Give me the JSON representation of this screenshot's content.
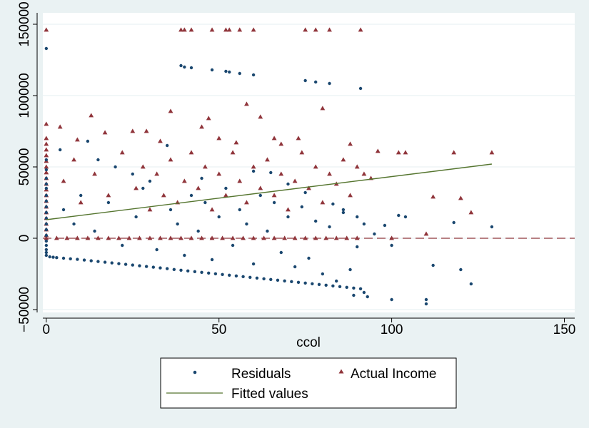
{
  "colors": {
    "background": "#eaf2f3",
    "plot_bg": "#ffffff",
    "grid": "#eaf2f3",
    "residuals": "#1a476f",
    "actual": "#90353b",
    "fitted": "#55752f",
    "refline": "#90353b"
  },
  "chart_data": {
    "type": "scatter",
    "title": "",
    "xlabel": "ccol",
    "ylabel": "",
    "xlim": [
      -1,
      153
    ],
    "ylim": [
      -52000,
      158000
    ],
    "xticks": [
      0,
      50,
      100,
      150
    ],
    "yticks": [
      -50000,
      0,
      50000,
      100000,
      150000
    ],
    "xtick_labels": [
      "0",
      "50",
      "100",
      "150"
    ],
    "ytick_labels": [
      "−50000",
      "0",
      "50000",
      "100000",
      "150000"
    ],
    "grid": true,
    "reference_line": {
      "y": 0,
      "style": "dashed"
    },
    "legend_position": "bottom",
    "series": [
      {
        "name": "Residuals",
        "type": "scatter",
        "marker": "circle",
        "points": [
          [
            0,
            133000
          ],
          [
            0,
            55000
          ],
          [
            0,
            48000
          ],
          [
            0,
            42000
          ],
          [
            0,
            38000
          ],
          [
            0,
            35000
          ],
          [
            0,
            30000
          ],
          [
            0,
            26000
          ],
          [
            0,
            22000
          ],
          [
            0,
            18000
          ],
          [
            0,
            14000
          ],
          [
            0,
            10000
          ],
          [
            0,
            6000
          ],
          [
            0,
            2000
          ],
          [
            0,
            -2000
          ],
          [
            0,
            -5000
          ],
          [
            0,
            -8000
          ],
          [
            0,
            -10000
          ],
          [
            0,
            -12000
          ],
          [
            1,
            -13000
          ],
          [
            2,
            -13300
          ],
          [
            3,
            -13600
          ],
          [
            5,
            -14000
          ],
          [
            7,
            -14400
          ],
          [
            9,
            -14800
          ],
          [
            11,
            -15300
          ],
          [
            13,
            -15800
          ],
          [
            15,
            -16300
          ],
          [
            17,
            -16800
          ],
          [
            19,
            -17300
          ],
          [
            21,
            -17800
          ],
          [
            23,
            -18300
          ],
          [
            25,
            -18800
          ],
          [
            27,
            -19300
          ],
          [
            29,
            -19800
          ],
          [
            31,
            -20300
          ],
          [
            33,
            -20800
          ],
          [
            35,
            -21300
          ],
          [
            37,
            -21900
          ],
          [
            39,
            -22400
          ],
          [
            41,
            -22900
          ],
          [
            43,
            -23400
          ],
          [
            45,
            -23900
          ],
          [
            47,
            -24400
          ],
          [
            49,
            -24900
          ],
          [
            51,
            -25400
          ],
          [
            53,
            -25900
          ],
          [
            55,
            -26400
          ],
          [
            57,
            -26900
          ],
          [
            59,
            -27400
          ],
          [
            61,
            -27900
          ],
          [
            63,
            -28400
          ],
          [
            65,
            -28900
          ],
          [
            67,
            -29400
          ],
          [
            69,
            -29900
          ],
          [
            71,
            -30400
          ],
          [
            73,
            -30900
          ],
          [
            75,
            -31400
          ],
          [
            77,
            -31900
          ],
          [
            79,
            -32400
          ],
          [
            81,
            -32900
          ],
          [
            83,
            -33400
          ],
          [
            85,
            -33900
          ],
          [
            87,
            -34400
          ],
          [
            89,
            -34900
          ],
          [
            91,
            -35400
          ],
          [
            93,
            -41000
          ],
          [
            100,
            -43000
          ],
          [
            110,
            -43000
          ],
          [
            110,
            -46000
          ],
          [
            39,
            121000
          ],
          [
            40,
            120000
          ],
          [
            42,
            119500
          ],
          [
            48,
            118000
          ],
          [
            52,
            117000
          ],
          [
            53,
            116500
          ],
          [
            56,
            115500
          ],
          [
            60,
            114500
          ],
          [
            75,
            110500
          ],
          [
            78,
            109500
          ],
          [
            82,
            108500
          ],
          [
            91,
            105000
          ],
          [
            12,
            68000
          ],
          [
            35,
            65000
          ],
          [
            4,
            62000
          ],
          [
            15,
            55000
          ],
          [
            20,
            50000
          ],
          [
            25,
            45000
          ],
          [
            30,
            40000
          ],
          [
            45,
            42000
          ],
          [
            60,
            47000
          ],
          [
            65,
            46000
          ],
          [
            70,
            38000
          ],
          [
            75,
            32000
          ],
          [
            83,
            24000
          ],
          [
            86,
            20000
          ],
          [
            90,
            15000
          ],
          [
            92,
            10000
          ],
          [
            95,
            3000
          ],
          [
            98,
            9000
          ],
          [
            100,
            -5000
          ],
          [
            102,
            16000
          ],
          [
            104,
            15000
          ],
          [
            112,
            -19000
          ],
          [
            118,
            11000
          ],
          [
            120,
            -22000
          ],
          [
            123,
            -32000
          ],
          [
            129,
            8000
          ],
          [
            5,
            20000
          ],
          [
            8,
            10000
          ],
          [
            10,
            30000
          ],
          [
            14,
            5000
          ],
          [
            18,
            25000
          ],
          [
            22,
            -5000
          ],
          [
            26,
            15000
          ],
          [
            28,
            35000
          ],
          [
            32,
            -8000
          ],
          [
            36,
            20000
          ],
          [
            38,
            10000
          ],
          [
            40,
            -12000
          ],
          [
            42,
            30000
          ],
          [
            44,
            5000
          ],
          [
            46,
            25000
          ],
          [
            48,
            -15000
          ],
          [
            50,
            15000
          ],
          [
            52,
            35000
          ],
          [
            54,
            -5000
          ],
          [
            56,
            20000
          ],
          [
            58,
            10000
          ],
          [
            60,
            -18000
          ],
          [
            62,
            30000
          ],
          [
            64,
            5000
          ],
          [
            66,
            25000
          ],
          [
            68,
            -10000
          ],
          [
            70,
            15000
          ],
          [
            72,
            -20000
          ],
          [
            74,
            22000
          ],
          [
            76,
            -14000
          ],
          [
            78,
            12000
          ],
          [
            80,
            -25000
          ],
          [
            82,
            8000
          ],
          [
            84,
            -30000
          ],
          [
            86,
            18000
          ],
          [
            88,
            -22000
          ],
          [
            89,
            -40000
          ],
          [
            90,
            -6000
          ],
          [
            92,
            -38000
          ]
        ]
      },
      {
        "name": "Actual Income",
        "type": "scatter",
        "marker": "triangle",
        "points": [
          [
            0,
            146000
          ],
          [
            39,
            146000
          ],
          [
            40,
            146000
          ],
          [
            42,
            146000
          ],
          [
            48,
            146000
          ],
          [
            52,
            146000
          ],
          [
            53,
            146000
          ],
          [
            56,
            146000
          ],
          [
            60,
            146000
          ],
          [
            75,
            146000
          ],
          [
            78,
            146000
          ],
          [
            82,
            146000
          ],
          [
            91,
            146000
          ],
          [
            0,
            80000
          ],
          [
            0,
            70000
          ],
          [
            0,
            66000
          ],
          [
            0,
            62000
          ],
          [
            0,
            58000
          ],
          [
            0,
            54000
          ],
          [
            0,
            50000
          ],
          [
            0,
            46000
          ],
          [
            0,
            42000
          ],
          [
            0,
            38000
          ],
          [
            0,
            34000
          ],
          [
            0,
            30000
          ],
          [
            0,
            26000
          ],
          [
            0,
            22000
          ],
          [
            0,
            18000
          ],
          [
            0,
            14000
          ],
          [
            0,
            10000
          ],
          [
            0,
            6000
          ],
          [
            0,
            2000
          ],
          [
            0,
            0
          ],
          [
            13,
            86000
          ],
          [
            36,
            89000
          ],
          [
            58,
            94000
          ],
          [
            80,
            91000
          ],
          [
            4,
            78000
          ],
          [
            25,
            75000
          ],
          [
            45,
            78000
          ],
          [
            47,
            84000
          ],
          [
            62,
            85000
          ],
          [
            17,
            74000
          ],
          [
            29,
            75000
          ],
          [
            66,
            70000
          ],
          [
            9,
            69000
          ],
          [
            33,
            68000
          ],
          [
            50,
            70000
          ],
          [
            55,
            67000
          ],
          [
            68,
            66000
          ],
          [
            73,
            70000
          ],
          [
            88,
            66000
          ],
          [
            96,
            61000
          ],
          [
            102,
            60000
          ],
          [
            104,
            60000
          ],
          [
            118,
            60000
          ],
          [
            129,
            60000
          ],
          [
            112,
            29000
          ],
          [
            120,
            28000
          ],
          [
            123,
            18000
          ],
          [
            110,
            3000
          ],
          [
            100,
            0
          ],
          [
            5,
            40000
          ],
          [
            8,
            55000
          ],
          [
            10,
            25000
          ],
          [
            14,
            45000
          ],
          [
            18,
            30000
          ],
          [
            22,
            60000
          ],
          [
            26,
            35000
          ],
          [
            28,
            50000
          ],
          [
            30,
            20000
          ],
          [
            32,
            45000
          ],
          [
            34,
            30000
          ],
          [
            36,
            55000
          ],
          [
            38,
            25000
          ],
          [
            40,
            40000
          ],
          [
            42,
            60000
          ],
          [
            44,
            35000
          ],
          [
            46,
            50000
          ],
          [
            48,
            20000
          ],
          [
            50,
            45000
          ],
          [
            52,
            30000
          ],
          [
            54,
            60000
          ],
          [
            56,
            40000
          ],
          [
            58,
            25000
          ],
          [
            60,
            50000
          ],
          [
            62,
            35000
          ],
          [
            64,
            55000
          ],
          [
            66,
            30000
          ],
          [
            68,
            45000
          ],
          [
            70,
            20000
          ],
          [
            72,
            40000
          ],
          [
            74,
            60000
          ],
          [
            76,
            35000
          ],
          [
            78,
            50000
          ],
          [
            80,
            25000
          ],
          [
            82,
            45000
          ],
          [
            84,
            38000
          ],
          [
            86,
            55000
          ],
          [
            88,
            30000
          ],
          [
            90,
            50000
          ],
          [
            92,
            45000
          ],
          [
            94,
            42000
          ],
          [
            3,
            0
          ],
          [
            6,
            0
          ],
          [
            9,
            0
          ],
          [
            12,
            0
          ],
          [
            15,
            0
          ],
          [
            18,
            0
          ],
          [
            21,
            0
          ],
          [
            24,
            0
          ],
          [
            27,
            0
          ],
          [
            30,
            0
          ],
          [
            33,
            0
          ],
          [
            36,
            0
          ],
          [
            39,
            0
          ],
          [
            42,
            0
          ],
          [
            45,
            0
          ],
          [
            48,
            0
          ],
          [
            51,
            0
          ],
          [
            54,
            0
          ],
          [
            57,
            0
          ],
          [
            60,
            0
          ],
          [
            63,
            0
          ],
          [
            66,
            0
          ],
          [
            69,
            0
          ],
          [
            72,
            0
          ],
          [
            75,
            0
          ],
          [
            78,
            0
          ],
          [
            81,
            0
          ],
          [
            84,
            0
          ],
          [
            87,
            0
          ],
          [
            90,
            0
          ]
        ]
      },
      {
        "name": "Fitted values",
        "type": "line",
        "points": [
          [
            0,
            13000
          ],
          [
            129,
            52000
          ]
        ]
      }
    ]
  }
}
